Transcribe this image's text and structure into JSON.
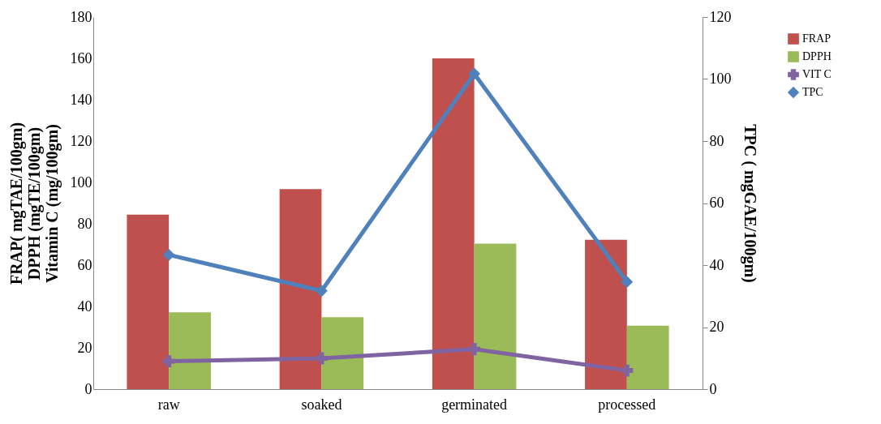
{
  "chart_data": {
    "type": "bar",
    "categories": [
      "raw",
      "soaked",
      "germinated",
      "processed"
    ],
    "ylabel": "FRAP( mgTAE/100gm)\nDPPH (mgTE/100gm)\nVitamin C (mg/100gm)",
    "y2label": "TPC ( mgGAE/100gm)",
    "ylim": [
      0,
      180
    ],
    "yticks": [
      0,
      20,
      40,
      60,
      80,
      100,
      120,
      140,
      160,
      180
    ],
    "y2lim": [
      0,
      120
    ],
    "y2ticks": [
      0,
      20,
      40,
      60,
      80,
      100,
      120
    ],
    "grid": false,
    "legend": "right",
    "series": [
      {
        "name": "FRAP",
        "color": "#c0504d",
        "values": [
          84.4,
          96.8,
          160,
          72.3
        ]
      },
      {
        "name": "DPPH",
        "color": "#9bbb59",
        "values": [
          37.2,
          34.8,
          70.4,
          30.7
        ]
      },
      {
        "name": "VIT C",
        "type": "line",
        "color": "#8064a2",
        "marker": "cross",
        "values": [
          13.5,
          14.9,
          19.3,
          9.0
        ]
      },
      {
        "name": "TPC",
        "type": "line",
        "axis": "y2",
        "color": "#4f81bd",
        "marker": "diamond",
        "values": [
          43.3,
          31.7,
          101.7,
          34.6
        ]
      }
    ]
  }
}
